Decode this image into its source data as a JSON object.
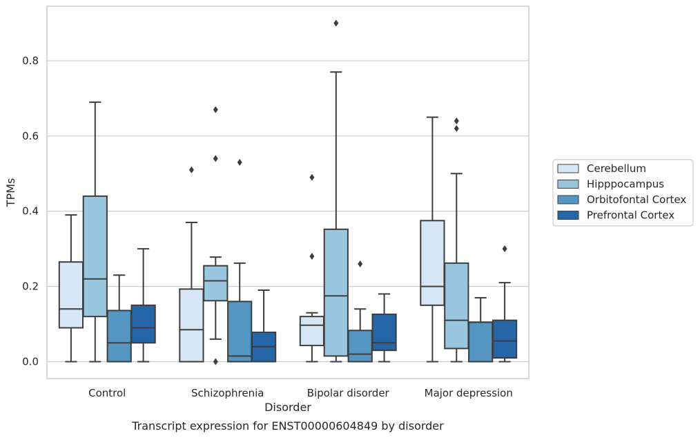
{
  "chart_data": {
    "type": "box",
    "xlabel": "Disorder",
    "ylabel": "TPMs",
    "caption": "Transcript expression for ENST00000604849 by disorder",
    "ylim": [
      -0.045,
      0.945
    ],
    "yticks": [
      0.0,
      0.2,
      0.4,
      0.6,
      0.8
    ],
    "ytick_labels": [
      "0.0",
      "0.2",
      "0.4",
      "0.6",
      "0.8"
    ],
    "grid": "horizontal",
    "legend_position": "right",
    "categories": [
      "Control",
      "Schizophrenia",
      "Bipolar disorder",
      "Major depression"
    ],
    "series": [
      {
        "name": "Cerebellum",
        "color": "#d6e6f4",
        "boxes": [
          {
            "whisker_low": 0.0,
            "q1": 0.09,
            "median": 0.14,
            "q3": 0.265,
            "whisker_high": 0.39,
            "outliers": []
          },
          {
            "whisker_low": 0.0,
            "q1": 0.0,
            "median": 0.085,
            "q3": 0.193,
            "whisker_high": 0.37,
            "outliers": [
              0.51
            ]
          },
          {
            "whisker_low": 0.0,
            "q1": 0.043,
            "median": 0.097,
            "q3": 0.12,
            "whisker_high": 0.13,
            "outliers": [
              0.28,
              0.49
            ]
          },
          {
            "whisker_low": 0.0,
            "q1": 0.15,
            "median": 0.2,
            "q3": 0.375,
            "whisker_high": 0.65,
            "outliers": []
          }
        ]
      },
      {
        "name": "Hipppocampus",
        "color": "#9ac5de",
        "boxes": [
          {
            "whisker_low": 0.0,
            "q1": 0.12,
            "median": 0.22,
            "q3": 0.44,
            "whisker_high": 0.69,
            "outliers": []
          },
          {
            "whisker_low": 0.06,
            "q1": 0.162,
            "median": 0.215,
            "q3": 0.255,
            "whisker_high": 0.278,
            "outliers": [
              0.0,
              0.54,
              0.67
            ]
          },
          {
            "whisker_low": 0.0,
            "q1": 0.015,
            "median": 0.175,
            "q3": 0.352,
            "whisker_high": 0.77,
            "outliers": [
              0.9
            ]
          },
          {
            "whisker_low": 0.0,
            "q1": 0.035,
            "median": 0.11,
            "q3": 0.262,
            "whisker_high": 0.5,
            "outliers": [
              0.62,
              0.64
            ]
          }
        ]
      },
      {
        "name": "Orbitofontal Cortex",
        "color": "#5495c2",
        "boxes": [
          {
            "whisker_low": 0.0,
            "q1": 0.0,
            "median": 0.05,
            "q3": 0.136,
            "whisker_high": 0.23,
            "outliers": []
          },
          {
            "whisker_low": 0.0,
            "q1": 0.0,
            "median": 0.015,
            "q3": 0.16,
            "whisker_high": 0.262,
            "outliers": [
              0.53
            ]
          },
          {
            "whisker_low": 0.0,
            "q1": 0.0,
            "median": 0.02,
            "q3": 0.083,
            "whisker_high": 0.14,
            "outliers": [
              0.26
            ]
          },
          {
            "whisker_low": 0.0,
            "q1": 0.0,
            "median": 0.105,
            "q3": 0.105,
            "whisker_high": 0.17,
            "outliers": []
          }
        ]
      },
      {
        "name": "Prefrontal Cortex",
        "color": "#2766a6",
        "boxes": [
          {
            "whisker_low": 0.0,
            "q1": 0.05,
            "median": 0.09,
            "q3": 0.15,
            "whisker_high": 0.3,
            "outliers": []
          },
          {
            "whisker_low": 0.0,
            "q1": 0.0,
            "median": 0.04,
            "q3": 0.078,
            "whisker_high": 0.19,
            "outliers": []
          },
          {
            "whisker_low": 0.0,
            "q1": 0.03,
            "median": 0.05,
            "q3": 0.126,
            "whisker_high": 0.18,
            "outliers": []
          },
          {
            "whisker_low": 0.0,
            "q1": 0.01,
            "median": 0.055,
            "q3": 0.11,
            "whisker_high": 0.21,
            "outliers": [
              0.3
            ]
          }
        ]
      }
    ]
  }
}
